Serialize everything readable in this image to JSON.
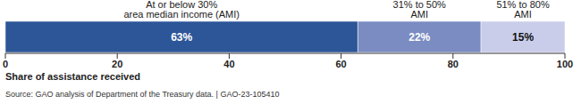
{
  "chart_data": {
    "type": "bar",
    "orientation": "horizontal",
    "stacked": true,
    "data_labels": true,
    "tick_labels": "x",
    "categories": [
      null
    ],
    "series": [
      {
        "name": "At or below 30% area median income (AMI)",
        "color": "#2c5697",
        "values": [
          63
        ],
        "value_labels": [
          "63%"
        ]
      },
      {
        "name": "31% to 50% AMI",
        "color": "#7a8cc2",
        "values": [
          22
        ],
        "value_labels": [
          "22%"
        ]
      },
      {
        "name": "51% to 80% AMI",
        "color": "#c9cdea",
        "values": [
          15
        ],
        "value_labels": [
          "15%"
        ]
      }
    ],
    "xlim": [
      0,
      100
    ],
    "xticks": [
      0,
      20,
      40,
      60,
      80,
      100
    ],
    "x_label": "Share of assistance received",
    "annotations": [
      "Source: GAO analysis of Department of the Treasury data. | GAO-23-105410"
    ]
  }
}
